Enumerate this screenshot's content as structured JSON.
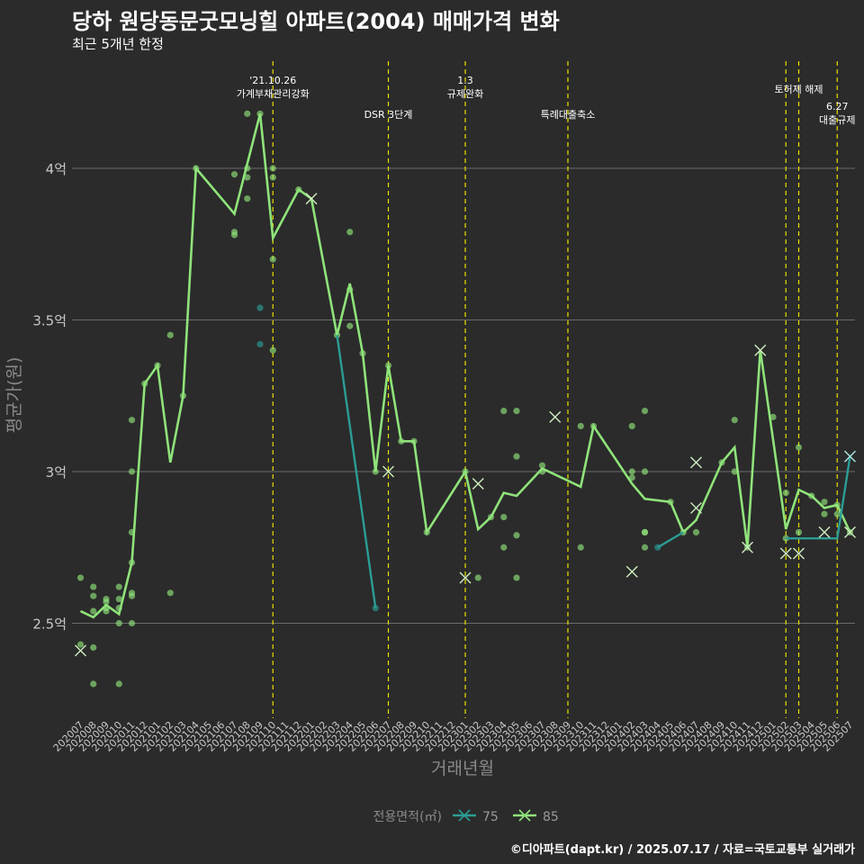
{
  "header": {
    "title": "당하 원당동문굿모닝힐 아파트(2004) 매매가격 변화",
    "subtitle": "최근 5개년 한정"
  },
  "footer": {
    "caption": "©디아파트(dapt.kr) / 2025.07.17 / 자료=국토교통부 실거래가"
  },
  "colors": {
    "background": "#2b2b2b",
    "series_75": "#2a9d95",
    "series_85": "#8fe37a",
    "event_lines": "#e8e000",
    "grid": "#6b6b6b"
  },
  "chart_data": {
    "type": "line",
    "title": "당하 원당동문굿모닝힐 아파트(2004) 매매가격 변화",
    "subtitle": "최근 5개년 한정",
    "xlabel": "거래년월",
    "ylabel": "평균가(원)",
    "ylim": [
      2.2,
      4.4
    ],
    "y_ticks": [
      {
        "value": 2.5,
        "label": "2.5억"
      },
      {
        "value": 3.0,
        "label": "3억"
      },
      {
        "value": 3.5,
        "label": "3.5억"
      },
      {
        "value": 4.0,
        "label": "4억"
      }
    ],
    "grid": true,
    "legend": {
      "title": "전용면적(㎡)",
      "position": "bottom",
      "entries": [
        "75",
        "85"
      ]
    },
    "categories": [
      "202007",
      "202008",
      "202009",
      "202010",
      "202011",
      "202012",
      "202101",
      "202102",
      "202103",
      "202104",
      "202105",
      "202106",
      "202107",
      "202108",
      "202109",
      "202110",
      "202111",
      "202112",
      "202201",
      "202202",
      "202203",
      "202204",
      "202205",
      "202206",
      "202207",
      "202208",
      "202209",
      "202210",
      "202211",
      "202212",
      "202301",
      "202302",
      "202303",
      "202304",
      "202305",
      "202306",
      "202307",
      "202308",
      "202309",
      "202310",
      "202311",
      "202312",
      "202401",
      "202402",
      "202403",
      "202404",
      "202405",
      "202406",
      "202407",
      "202408",
      "202409",
      "202410",
      "202411",
      "202412",
      "202501",
      "202502",
      "202503",
      "202504",
      "202505",
      "202506",
      "202507"
    ],
    "series": [
      {
        "name": "75",
        "line": [
          [
            "202203",
            3.45
          ],
          [
            "202206",
            2.55
          ],
          [
            "202404",
            2.75
          ],
          [
            "202406",
            2.8
          ],
          [
            "202502",
            2.78
          ],
          [
            "202506",
            2.78
          ],
          [
            "202507",
            3.05
          ]
        ],
        "points": [
          [
            "202109",
            3.54
          ],
          [
            "202109",
            3.42
          ],
          [
            "202206",
            2.55
          ],
          [
            "202404",
            2.75
          ]
        ],
        "crosses": [
          [
            "202507",
            3.05
          ]
        ]
      },
      {
        "name": "85",
        "line": [
          [
            "202007",
            2.54
          ],
          [
            "202008",
            2.52
          ],
          [
            "202009",
            2.56
          ],
          [
            "202010",
            2.53
          ],
          [
            "202011",
            2.7
          ],
          [
            "202012",
            3.29
          ],
          [
            "202101",
            3.35
          ],
          [
            "202102",
            3.03
          ],
          [
            "202103",
            3.25
          ],
          [
            "202104",
            4.0
          ],
          [
            "202107",
            3.85
          ],
          [
            "202109",
            4.18
          ],
          [
            "202110",
            3.77
          ],
          [
            "202112",
            3.93
          ],
          [
            "202201",
            3.9
          ],
          [
            "202203",
            3.45
          ],
          [
            "202204",
            3.62
          ],
          [
            "202205",
            3.39
          ],
          [
            "202206",
            3.0
          ],
          [
            "202207",
            3.35
          ],
          [
            "202208",
            3.1
          ],
          [
            "202209",
            3.1
          ],
          [
            "202210",
            2.8
          ],
          [
            "202301",
            3.0
          ],
          [
            "202302",
            2.81
          ],
          [
            "202303",
            2.85
          ],
          [
            "202304",
            2.93
          ],
          [
            "202305",
            2.92
          ],
          [
            "202307",
            3.01
          ],
          [
            "202310",
            2.95
          ],
          [
            "202311",
            3.15
          ],
          [
            "202402",
            2.96
          ],
          [
            "202403",
            2.91
          ],
          [
            "202405",
            2.9
          ],
          [
            "202406",
            2.8
          ],
          [
            "202407",
            2.84
          ],
          [
            "202409",
            3.03
          ],
          [
            "202410",
            3.08
          ],
          [
            "202411",
            2.75
          ],
          [
            "202412",
            3.4
          ],
          [
            "202502",
            2.81
          ],
          [
            "202503",
            2.94
          ],
          [
            "202504",
            2.92
          ],
          [
            "202505",
            2.88
          ],
          [
            "202506",
            2.89
          ],
          [
            "202507",
            2.8
          ]
        ],
        "points": [
          [
            "202007",
            2.65
          ],
          [
            "202007",
            2.43
          ],
          [
            "202008",
            2.62
          ],
          [
            "202008",
            2.59
          ],
          [
            "202008",
            2.54
          ],
          [
            "202008",
            2.42
          ],
          [
            "202008",
            2.3
          ],
          [
            "202009",
            2.58
          ],
          [
            "202009",
            2.57
          ],
          [
            "202009",
            2.55
          ],
          [
            "202009",
            2.54
          ],
          [
            "202010",
            2.62
          ],
          [
            "202010",
            2.58
          ],
          [
            "202010",
            2.55
          ],
          [
            "202010",
            2.5
          ],
          [
            "202010",
            2.3
          ],
          [
            "202011",
            3.17
          ],
          [
            "202011",
            3.0
          ],
          [
            "202011",
            2.8
          ],
          [
            "202011",
            2.7
          ],
          [
            "202011",
            2.6
          ],
          [
            "202011",
            2.59
          ],
          [
            "202011",
            2.5
          ],
          [
            "202012",
            3.29
          ],
          [
            "202101",
            3.35
          ],
          [
            "202102",
            3.45
          ],
          [
            "202102",
            2.6
          ],
          [
            "202103",
            3.25
          ],
          [
            "202104",
            4.0
          ],
          [
            "202107",
            3.98
          ],
          [
            "202107",
            3.79
          ],
          [
            "202107",
            3.78
          ],
          [
            "202108",
            4.18
          ],
          [
            "202108",
            4.0
          ],
          [
            "202108",
            3.97
          ],
          [
            "202108",
            3.9
          ],
          [
            "202109",
            4.18
          ],
          [
            "202110",
            4.0
          ],
          [
            "202110",
            3.97
          ],
          [
            "202110",
            3.7
          ],
          [
            "202110",
            3.4
          ],
          [
            "202112",
            3.93
          ],
          [
            "202203",
            3.45
          ],
          [
            "202204",
            3.79
          ],
          [
            "202204",
            3.6
          ],
          [
            "202204",
            3.48
          ],
          [
            "202205",
            3.39
          ],
          [
            "202206",
            3.0
          ],
          [
            "202207",
            3.35
          ],
          [
            "202208",
            3.1
          ],
          [
            "202209",
            3.1
          ],
          [
            "202210",
            2.8
          ],
          [
            "202301",
            3.0
          ],
          [
            "202302",
            2.65
          ],
          [
            "202303",
            2.85
          ],
          [
            "202304",
            3.2
          ],
          [
            "202304",
            2.85
          ],
          [
            "202304",
            2.75
          ],
          [
            "202305",
            3.2
          ],
          [
            "202305",
            3.05
          ],
          [
            "202305",
            2.79
          ],
          [
            "202305",
            2.65
          ],
          [
            "202307",
            3.02
          ],
          [
            "202307",
            3.0
          ],
          [
            "202310",
            3.15
          ],
          [
            "202310",
            2.75
          ],
          [
            "202311",
            3.15
          ],
          [
            "202402",
            3.15
          ],
          [
            "202402",
            3.0
          ],
          [
            "202402",
            2.98
          ],
          [
            "202403",
            3.2
          ],
          [
            "202403",
            3.0
          ],
          [
            "202403",
            2.8
          ],
          [
            "202403",
            2.8
          ],
          [
            "202403",
            2.75
          ],
          [
            "202405",
            2.9
          ],
          [
            "202406",
            2.8
          ],
          [
            "202407",
            2.8
          ],
          [
            "202409",
            3.03
          ],
          [
            "202410",
            3.17
          ],
          [
            "202410",
            3.0
          ],
          [
            "202411",
            2.75
          ],
          [
            "202501",
            3.18
          ],
          [
            "202502",
            2.93
          ],
          [
            "202502",
            2.78
          ],
          [
            "202503",
            3.08
          ],
          [
            "202503",
            2.8
          ],
          [
            "202504",
            2.92
          ],
          [
            "202505",
            2.9
          ],
          [
            "202505",
            2.86
          ],
          [
            "202506",
            2.89
          ],
          [
            "202506",
            2.86
          ],
          [
            "202507",
            2.8
          ]
        ],
        "crosses": [
          [
            "202007",
            2.41
          ],
          [
            "202201",
            3.9
          ],
          [
            "202207",
            3.0
          ],
          [
            "202301",
            2.65
          ],
          [
            "202302",
            2.96
          ],
          [
            "202308",
            3.18
          ],
          [
            "202402",
            2.67
          ],
          [
            "202407",
            3.03
          ],
          [
            "202407",
            2.88
          ],
          [
            "202411",
            2.75
          ],
          [
            "202412",
            3.4
          ],
          [
            "202502",
            2.73
          ],
          [
            "202503",
            2.73
          ],
          [
            "202505",
            2.8
          ],
          [
            "202507",
            2.8
          ]
        ]
      }
    ],
    "events": [
      {
        "date": "202110",
        "lines": [
          "'21.10.26",
          "가계부채관리강화"
        ],
        "position": "high"
      },
      {
        "date": "202207",
        "lines": [
          "DSR 3단계"
        ],
        "position": "low"
      },
      {
        "date": "202301",
        "lines": [
          "1.3",
          "규제완화"
        ],
        "position": "high"
      },
      {
        "date": "202309",
        "lines": [
          "특례대출축소"
        ],
        "position": "low"
      },
      {
        "date": "202502",
        "lines": [],
        "position": "high"
      },
      {
        "date": "202503",
        "lines": [
          "토허제 해제"
        ],
        "position": "mid"
      },
      {
        "date": "202506",
        "lines": [
          "6.27",
          "대출규제"
        ],
        "position": "midlow"
      }
    ]
  }
}
